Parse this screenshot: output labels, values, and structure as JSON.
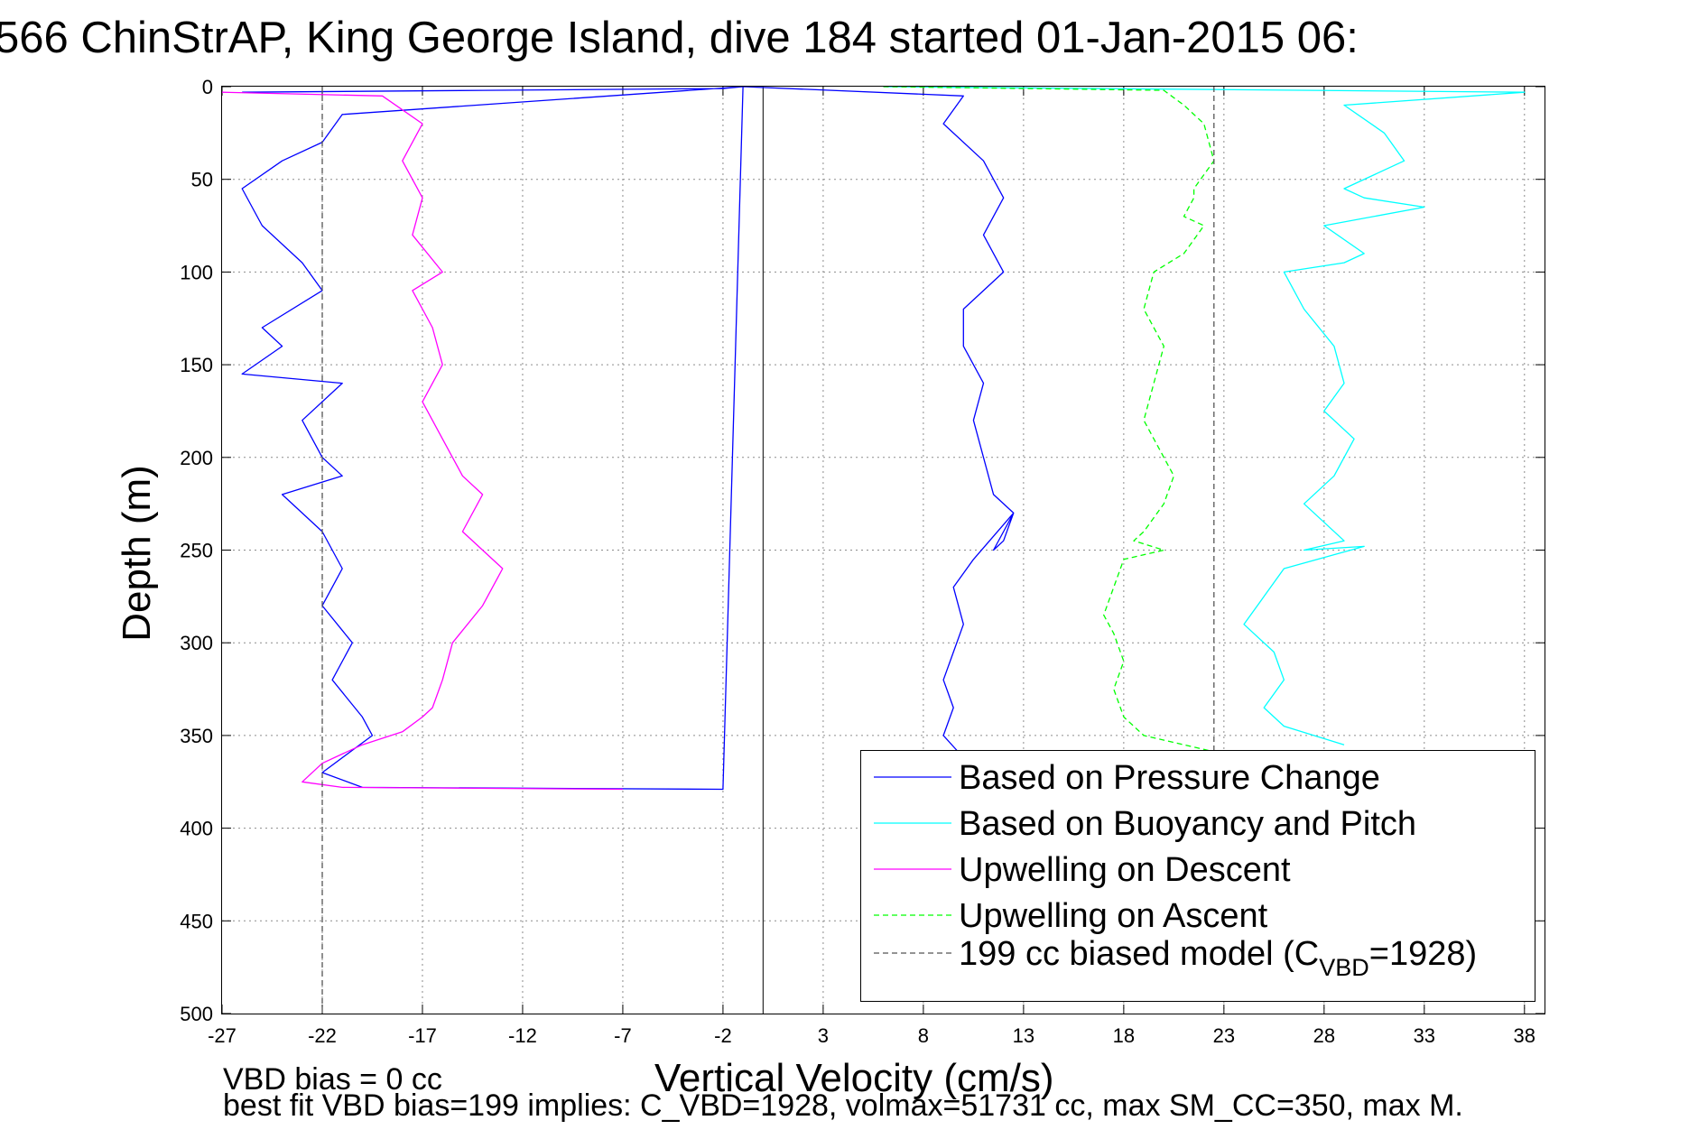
{
  "figure": {
    "title": "566 ChinStrAP, King George Island, dive 184 started 01-Jan-2015 06:",
    "note1": "VBD bias = 0 cc",
    "note2": "best fit VBD bias=199 implies: C_VBD=1928, volmax=51731 cc, max SM_CC=350, max M."
  },
  "chart_data": {
    "type": "line",
    "title": "566 ChinStrAP, King George Island, dive 184 started 01-Jan-2015 06:",
    "xlabel": "Vertical Velocity (cm/s)",
    "ylabel": "Depth (m)",
    "xlim": [
      -27,
      39
    ],
    "ylim": [
      500,
      0
    ],
    "y_reversed": true,
    "grid": true,
    "legend_position": "lower-right",
    "xticks": [
      -27,
      -22,
      -17,
      -12,
      -7,
      -2,
      3,
      8,
      13,
      18,
      23,
      28,
      33,
      38
    ],
    "yticks": [
      0,
      50,
      100,
      150,
      200,
      250,
      300,
      350,
      400,
      450,
      500
    ],
    "vertical_reference_x": 0,
    "legend": {
      "entries": [
        {
          "label": "Based on Pressure Change",
          "color": "#0000ff",
          "dash": "solid"
        },
        {
          "label": "Based on Buoyancy and Pitch",
          "color": "#00ffff",
          "dash": "solid"
        },
        {
          "label": "Upwelling on Descent",
          "color": "#ff00ff",
          "dash": "solid"
        },
        {
          "label": "Upwelling on Ascent",
          "color": "#00ff00",
          "dash": "dashed"
        },
        {
          "label": "199 cc biased model (C",
          "sub": "VBD",
          "label_tail": "=1928)",
          "color": "#555555",
          "dash": "dashed"
        }
      ]
    },
    "series": [
      {
        "name": "Based on Pressure Change",
        "color": "#0000ff",
        "dash": "solid",
        "x": [
          -26,
          -14,
          -2,
          -1,
          -21,
          -22,
          -24,
          -26,
          -25,
          -23,
          -22,
          -25,
          -24,
          -26,
          -21,
          -23,
          -22,
          -21,
          -24,
          -22,
          -21,
          -22,
          -20.5,
          -21.5,
          -20,
          -19.5,
          -22,
          -20,
          -2,
          -1,
          10,
          9,
          11,
          12,
          11,
          12,
          10,
          10,
          11,
          10.5,
          11,
          11.5,
          12.5,
          12,
          11.5,
          12,
          12.5,
          10.5,
          9.5,
          10,
          9.5,
          9,
          9.5,
          9,
          10,
          9.5
        ],
        "y": [
          3,
          2,
          1,
          0,
          15,
          30,
          40,
          55,
          75,
          95,
          110,
          130,
          140,
          155,
          160,
          180,
          200,
          210,
          220,
          240,
          260,
          280,
          300,
          320,
          340,
          350,
          370,
          378,
          379,
          0,
          5,
          20,
          40,
          60,
          80,
          100,
          120,
          140,
          160,
          180,
          200,
          220,
          230,
          245,
          250,
          240,
          230,
          255,
          270,
          290,
          305,
          320,
          335,
          350,
          362,
          370
        ]
      },
      {
        "name": "Based on Buoyancy and Pitch",
        "color": "#00ffff",
        "dash": "solid",
        "x": [
          6,
          38,
          29,
          31,
          32,
          29,
          30,
          33,
          28,
          30,
          29,
          26,
          27,
          28.5,
          29,
          28,
          29.5,
          29,
          28.5,
          27,
          29,
          27,
          30,
          26,
          25,
          24,
          25.5,
          26,
          25,
          26,
          29
        ],
        "y": [
          0,
          3,
          10,
          25,
          40,
          55,
          60,
          65,
          75,
          90,
          95,
          100,
          120,
          140,
          160,
          175,
          190,
          200,
          210,
          225,
          245,
          250,
          248,
          260,
          275,
          290,
          305,
          320,
          335,
          345,
          355
        ]
      },
      {
        "name": "Upwelling on Descent",
        "color": "#ff00ff",
        "dash": "solid",
        "x": [
          -27,
          -19,
          -17,
          -18,
          -17,
          -17.5,
          -16,
          -17.5,
          -16.5,
          -16,
          -17,
          -16,
          -15,
          -14,
          -15,
          -13,
          -14,
          -15.5,
          -16,
          -16.5,
          -17,
          -18,
          -20,
          -21,
          -22,
          -23,
          -21,
          -7
        ],
        "y": [
          3,
          5,
          20,
          40,
          60,
          80,
          100,
          110,
          130,
          150,
          170,
          190,
          210,
          220,
          240,
          260,
          280,
          300,
          320,
          335,
          340,
          348,
          355,
          360,
          365,
          375,
          378,
          379
        ]
      },
      {
        "name": "Upwelling on Ascent",
        "color": "#00ff00",
        "dash": "dashed",
        "x": [
          6,
          20,
          21,
          22,
          22.5,
          21.5,
          21.5,
          21,
          22,
          21,
          19.5,
          19,
          20,
          19.5,
          19,
          20,
          20.5,
          20,
          19,
          18.5,
          20,
          18,
          17.5,
          17,
          17.5,
          18,
          17.5,
          18,
          19,
          21,
          23
        ],
        "y": [
          0,
          2,
          10,
          20,
          40,
          55,
          60,
          70,
          75,
          90,
          100,
          120,
          140,
          160,
          180,
          200,
          210,
          225,
          240,
          245,
          250,
          255,
          270,
          285,
          295,
          310,
          325,
          340,
          350,
          355,
          360
        ]
      },
      {
        "name": "199 cc biased model (CVBD=1928)",
        "color": "#555555",
        "dash": "dashed",
        "x": [
          -22,
          -22
        ],
        "y": [
          0,
          500
        ]
      },
      {
        "name": "199 cc biased model (CVBD=1928)",
        "color": "#555555",
        "dash": "dashed",
        "x": [
          22.5,
          22.5
        ],
        "y": [
          0,
          370
        ]
      }
    ]
  }
}
